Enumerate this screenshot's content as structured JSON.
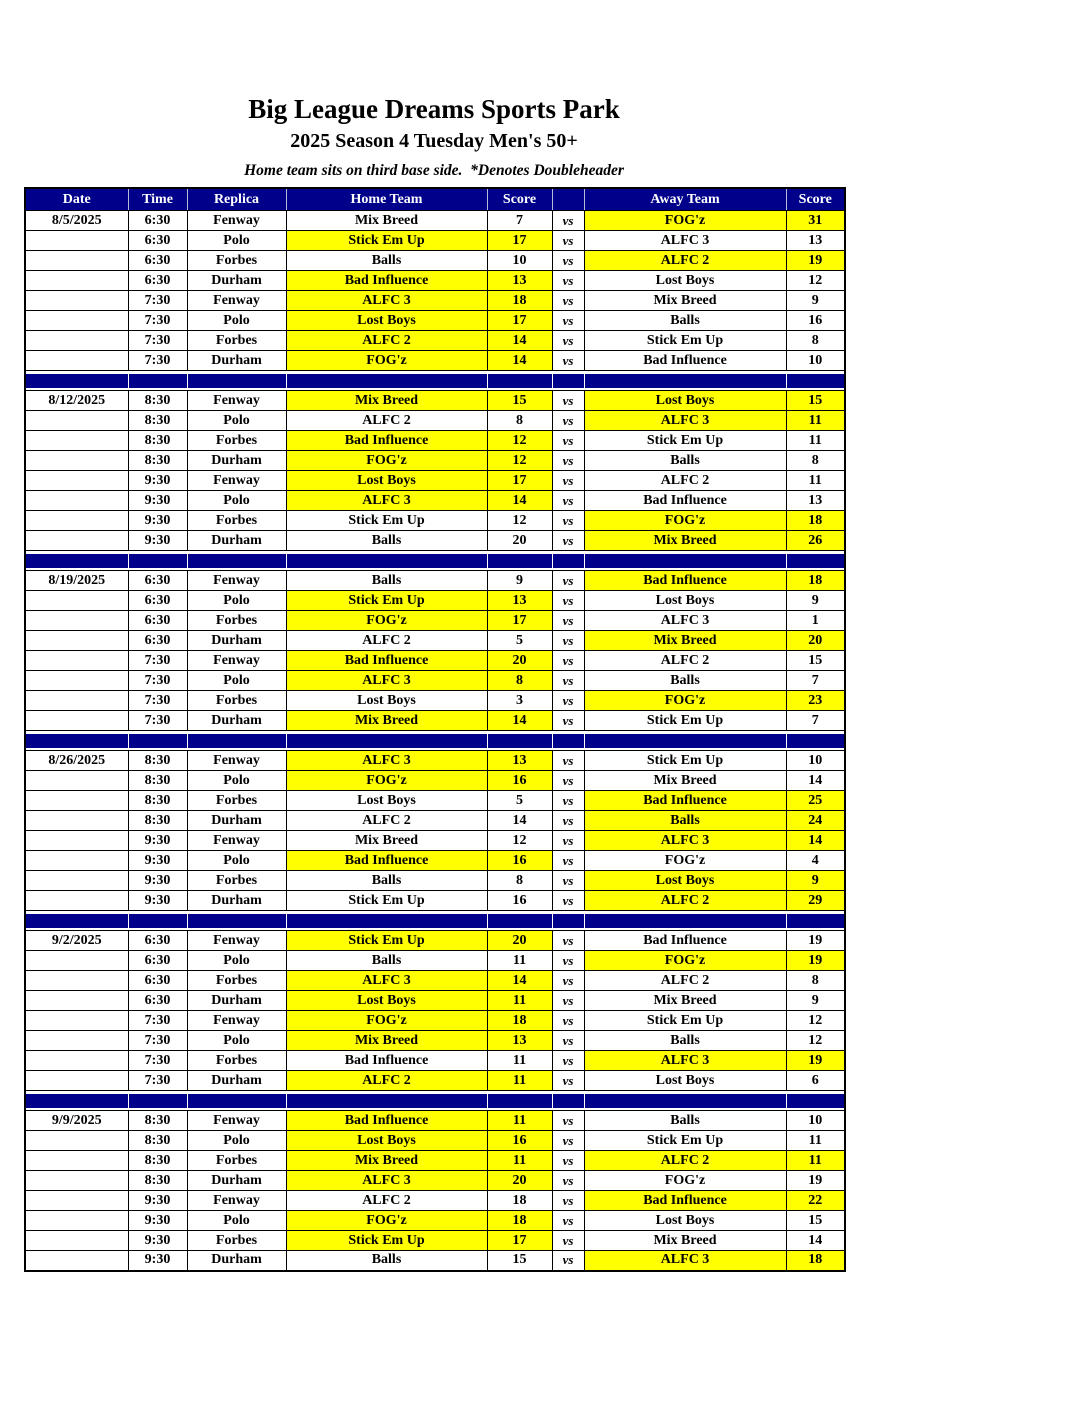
{
  "title": "Big League Dreams Sports Park",
  "subtitle": "2025 Season 4 Tuesday Men's 50+",
  "note": "Home team sits on third base side.  *Denotes Doubleheader",
  "table": {
    "columns": [
      "Date",
      "Time",
      "Replica",
      "Home Team",
      "Score",
      "",
      "Away Team",
      "Score"
    ],
    "vs_label": "vs"
  },
  "colors": {
    "header_bg": "#00008B",
    "separator_bg": "#00008B",
    "highlight": "#FFFF00",
    "header_text": "#FFFFFF",
    "grid": "#000000"
  },
  "weeks": [
    {
      "date": "8/5/2025",
      "games": [
        {
          "time": "6:30",
          "replica": "Fenway",
          "home": "Mix Breed",
          "home_score": "7",
          "away": "FOG'z",
          "away_score": "31",
          "home_win": false,
          "away_win": true
        },
        {
          "time": "6:30",
          "replica": "Polo",
          "home": "Stick Em Up",
          "home_score": "17",
          "away": "ALFC 3",
          "away_score": "13",
          "home_win": true,
          "away_win": false
        },
        {
          "time": "6:30",
          "replica": "Forbes",
          "home": "Balls",
          "home_score": "10",
          "away": "ALFC 2",
          "away_score": "19",
          "home_win": false,
          "away_win": true
        },
        {
          "time": "6:30",
          "replica": "Durham",
          "home": "Bad Influence",
          "home_score": "13",
          "away": "Lost Boys",
          "away_score": "12",
          "home_win": true,
          "away_win": false
        },
        {
          "time": "7:30",
          "replica": "Fenway",
          "home": "ALFC 3",
          "home_score": "18",
          "away": "Mix Breed",
          "away_score": "9",
          "home_win": true,
          "away_win": false
        },
        {
          "time": "7:30",
          "replica": "Polo",
          "home": "Lost Boys",
          "home_score": "17",
          "away": "Balls",
          "away_score": "16",
          "home_win": true,
          "away_win": false
        },
        {
          "time": "7:30",
          "replica": "Forbes",
          "home": "ALFC 2",
          "home_score": "14",
          "away": "Stick Em Up",
          "away_score": "8",
          "home_win": true,
          "away_win": false
        },
        {
          "time": "7:30",
          "replica": "Durham",
          "home": "FOG'z",
          "home_score": "14",
          "away": "Bad Influence",
          "away_score": "10",
          "home_win": true,
          "away_win": false
        }
      ]
    },
    {
      "date": "8/12/2025",
      "games": [
        {
          "time": "8:30",
          "replica": "Fenway",
          "home": "Mix Breed",
          "home_score": "15",
          "away": "Lost Boys",
          "away_score": "15",
          "home_win": true,
          "away_win": true
        },
        {
          "time": "8:30",
          "replica": "Polo",
          "home": "ALFC 2",
          "home_score": "8",
          "away": "ALFC 3",
          "away_score": "11",
          "home_win": false,
          "away_win": true
        },
        {
          "time": "8:30",
          "replica": "Forbes",
          "home": "Bad Influence",
          "home_score": "12",
          "away": "Stick Em Up",
          "away_score": "11",
          "home_win": true,
          "away_win": false
        },
        {
          "time": "8:30",
          "replica": "Durham",
          "home": "FOG'z",
          "home_score": "12",
          "away": "Balls",
          "away_score": "8",
          "home_win": true,
          "away_win": false
        },
        {
          "time": "9:30",
          "replica": "Fenway",
          "home": "Lost Boys",
          "home_score": "17",
          "away": "ALFC 2",
          "away_score": "11",
          "home_win": true,
          "away_win": false
        },
        {
          "time": "9:30",
          "replica": "Polo",
          "home": "ALFC 3",
          "home_score": "14",
          "away": "Bad Influence",
          "away_score": "13",
          "home_win": true,
          "away_win": false
        },
        {
          "time": "9:30",
          "replica": "Forbes",
          "home": "Stick Em Up",
          "home_score": "12",
          "away": "FOG'z",
          "away_score": "18",
          "home_win": false,
          "away_win": true
        },
        {
          "time": "9:30",
          "replica": "Durham",
          "home": "Balls",
          "home_score": "20",
          "away": "Mix Breed",
          "away_score": "26",
          "home_win": false,
          "away_win": true
        }
      ]
    },
    {
      "date": "8/19/2025",
      "games": [
        {
          "time": "6:30",
          "replica": "Fenway",
          "home": "Balls",
          "home_score": "9",
          "away": "Bad Influence",
          "away_score": "18",
          "home_win": false,
          "away_win": true
        },
        {
          "time": "6:30",
          "replica": "Polo",
          "home": "Stick Em Up",
          "home_score": "13",
          "away": "Lost Boys",
          "away_score": "9",
          "home_win": true,
          "away_win": false
        },
        {
          "time": "6:30",
          "replica": "Forbes",
          "home": "FOG'z",
          "home_score": "17",
          "away": "ALFC 3",
          "away_score": "1",
          "home_win": true,
          "away_win": false
        },
        {
          "time": "6:30",
          "replica": "Durham",
          "home": "ALFC 2",
          "home_score": "5",
          "away": "Mix Breed",
          "away_score": "20",
          "home_win": false,
          "away_win": true
        },
        {
          "time": "7:30",
          "replica": "Fenway",
          "home": "Bad Influence",
          "home_score": "20",
          "away": "ALFC 2",
          "away_score": "15",
          "home_win": true,
          "away_win": false
        },
        {
          "time": "7:30",
          "replica": "Polo",
          "home": "ALFC 3",
          "home_score": "8",
          "away": "Balls",
          "away_score": "7",
          "home_win": true,
          "away_win": false
        },
        {
          "time": "7:30",
          "replica": "Forbes",
          "home": "Lost Boys",
          "home_score": "3",
          "away": "FOG'z",
          "away_score": "23",
          "home_win": false,
          "away_win": true
        },
        {
          "time": "7:30",
          "replica": "Durham",
          "home": "Mix Breed",
          "home_score": "14",
          "away": "Stick Em Up",
          "away_score": "7",
          "home_win": true,
          "away_win": false
        }
      ]
    },
    {
      "date": "8/26/2025",
      "games": [
        {
          "time": "8:30",
          "replica": "Fenway",
          "home": "ALFC 3",
          "home_score": "13",
          "away": "Stick Em Up",
          "away_score": "10",
          "home_win": true,
          "away_win": false
        },
        {
          "time": "8:30",
          "replica": "Polo",
          "home": "FOG'z",
          "home_score": "16",
          "away": "Mix Breed",
          "away_score": "14",
          "home_win": true,
          "away_win": false
        },
        {
          "time": "8:30",
          "replica": "Forbes",
          "home": "Lost Boys",
          "home_score": "5",
          "away": "Bad Influence",
          "away_score": "25",
          "home_win": false,
          "away_win": true
        },
        {
          "time": "8:30",
          "replica": "Durham",
          "home": "ALFC 2",
          "home_score": "14",
          "away": "Balls",
          "away_score": "24",
          "home_win": false,
          "away_win": true
        },
        {
          "time": "9:30",
          "replica": "Fenway",
          "home": "Mix Breed",
          "home_score": "12",
          "away": "ALFC 3",
          "away_score": "14",
          "home_win": false,
          "away_win": true
        },
        {
          "time": "9:30",
          "replica": "Polo",
          "home": "Bad Influence",
          "home_score": "16",
          "away": "FOG'z",
          "away_score": "4",
          "home_win": true,
          "away_win": false
        },
        {
          "time": "9:30",
          "replica": "Forbes",
          "home": "Balls",
          "home_score": "8",
          "away": "Lost Boys",
          "away_score": "9",
          "home_win": false,
          "away_win": true
        },
        {
          "time": "9:30",
          "replica": "Durham",
          "home": "Stick Em Up",
          "home_score": "16",
          "away": "ALFC 2",
          "away_score": "29",
          "home_win": false,
          "away_win": true
        }
      ]
    },
    {
      "date": "9/2/2025",
      "games": [
        {
          "time": "6:30",
          "replica": "Fenway",
          "home": "Stick Em Up",
          "home_score": "20",
          "away": "Bad Influence",
          "away_score": "19",
          "home_win": true,
          "away_win": false
        },
        {
          "time": "6:30",
          "replica": "Polo",
          "home": "Balls",
          "home_score": "11",
          "away": "FOG'z",
          "away_score": "19",
          "home_win": false,
          "away_win": true
        },
        {
          "time": "6:30",
          "replica": "Forbes",
          "home": "ALFC 3",
          "home_score": "14",
          "away": "ALFC 2",
          "away_score": "8",
          "home_win": true,
          "away_win": false
        },
        {
          "time": "6:30",
          "replica": "Durham",
          "home": "Lost Boys",
          "home_score": "11",
          "away": "Mix Breed",
          "away_score": "9",
          "home_win": true,
          "away_win": false
        },
        {
          "time": "7:30",
          "replica": "Fenway",
          "home": "FOG'z",
          "home_score": "18",
          "away": "Stick Em Up",
          "away_score": "12",
          "home_win": true,
          "away_win": false
        },
        {
          "time": "7:30",
          "replica": "Polo",
          "home": "Mix Breed",
          "home_score": "13",
          "away": "Balls",
          "away_score": "12",
          "home_win": true,
          "away_win": false
        },
        {
          "time": "7:30",
          "replica": "Forbes",
          "home": "Bad Influence",
          "home_score": "11",
          "away": "ALFC 3",
          "away_score": "19",
          "home_win": false,
          "away_win": true
        },
        {
          "time": "7:30",
          "replica": "Durham",
          "home": "ALFC 2",
          "home_score": "11",
          "away": "Lost Boys",
          "away_score": "6",
          "home_win": true,
          "away_win": false
        }
      ]
    },
    {
      "date": "9/9/2025",
      "games": [
        {
          "time": "8:30",
          "replica": "Fenway",
          "home": "Bad Influence",
          "home_score": "11",
          "away": "Balls",
          "away_score": "10",
          "home_win": true,
          "away_win": false
        },
        {
          "time": "8:30",
          "replica": "Polo",
          "home": "Lost Boys",
          "home_score": "16",
          "away": "Stick Em Up",
          "away_score": "11",
          "home_win": true,
          "away_win": false
        },
        {
          "time": "8:30",
          "replica": "Forbes",
          "home": "Mix Breed",
          "home_score": "11",
          "away": "ALFC 2",
          "away_score": "11",
          "home_win": true,
          "away_win": true
        },
        {
          "time": "8:30",
          "replica": "Durham",
          "home": "ALFC 3",
          "home_score": "20",
          "away": "FOG'z",
          "away_score": "19",
          "home_win": true,
          "away_win": false
        },
        {
          "time": "9:30",
          "replica": "Fenway",
          "home": "ALFC 2",
          "home_score": "18",
          "away": "Bad Influence",
          "away_score": "22",
          "home_win": false,
          "away_win": true
        },
        {
          "time": "9:30",
          "replica": "Polo",
          "home": "FOG'z",
          "home_score": "18",
          "away": "Lost Boys",
          "away_score": "15",
          "home_win": true,
          "away_win": false
        },
        {
          "time": "9:30",
          "replica": "Forbes",
          "home": "Stick Em Up",
          "home_score": "17",
          "away": "Mix Breed",
          "away_score": "14",
          "home_win": true,
          "away_win": false
        },
        {
          "time": "9:30",
          "replica": "Durham",
          "home": "Balls",
          "home_score": "15",
          "away": "ALFC 3",
          "away_score": "18",
          "home_win": false,
          "away_win": true
        }
      ]
    }
  ]
}
